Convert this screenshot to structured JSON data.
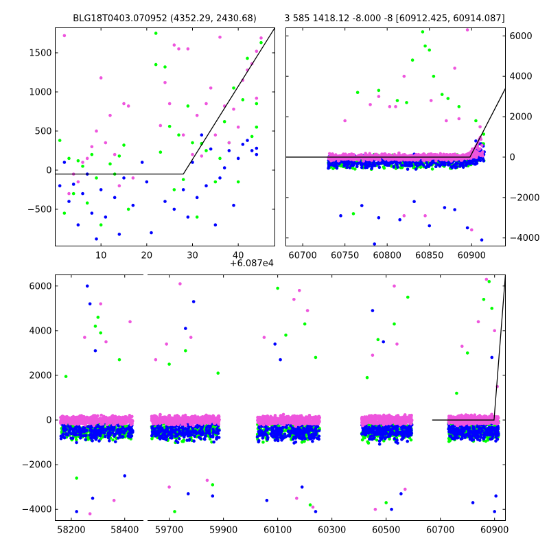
{
  "colors": {
    "series_green": "#00ff00",
    "series_blue": "#0000ff",
    "series_pink": "#ee55dd",
    "model_line": "#000000"
  },
  "chart_data": [
    {
      "id": "top-left",
      "type": "scatter",
      "title": "BLG18T0403.070952 (4352.29, 2430.68)",
      "offset_label": "+6.087e4",
      "xlim": [
        0,
        48
      ],
      "ylim": [
        -970,
        1820
      ],
      "xticks": [
        10,
        20,
        30,
        40
      ],
      "yticks": [
        -500,
        0,
        500,
        1000,
        1500
      ],
      "ytick_labels": [
        "−500",
        "0",
        "500",
        "1000",
        "1500"
      ],
      "yaxis_side": "left",
      "series": [
        {
          "name": "green",
          "color": "#00ff00",
          "points": [
            [
              1,
              380
            ],
            [
              2,
              -550
            ],
            [
              3,
              150
            ],
            [
              4,
              -300
            ],
            [
              5,
              120
            ],
            [
              6,
              50
            ],
            [
              7,
              -420
            ],
            [
              8,
              200
            ],
            [
              9,
              -100
            ],
            [
              10,
              -700
            ],
            [
              12,
              80
            ],
            [
              13,
              -50
            ],
            [
              14,
              180
            ],
            [
              15,
              320
            ],
            [
              16,
              -500
            ],
            [
              22,
              1750
            ],
            [
              22,
              1350
            ],
            [
              23,
              230
            ],
            [
              24,
              1320
            ],
            [
              25,
              560
            ],
            [
              26,
              -250
            ],
            [
              27,
              450
            ],
            [
              28,
              -120
            ],
            [
              29,
              820
            ],
            [
              30,
              350
            ],
            [
              31,
              -600
            ],
            [
              32,
              340
            ],
            [
              33,
              250
            ],
            [
              35,
              -150
            ],
            [
              36,
              150
            ],
            [
              37,
              620
            ],
            [
              38,
              350
            ],
            [
              39,
              1050
            ],
            [
              40,
              -150
            ],
            [
              41,
              900
            ],
            [
              42,
              1430
            ],
            [
              43,
              430
            ],
            [
              44,
              550
            ],
            [
              44,
              850
            ],
            [
              45,
              1630
            ]
          ]
        },
        {
          "name": "blue",
          "color": "#0000ff",
          "points": [
            [
              1,
              -200
            ],
            [
              2,
              100
            ],
            [
              3,
              -400
            ],
            [
              4,
              -180
            ],
            [
              5,
              -700
            ],
            [
              6,
              -300
            ],
            [
              7,
              -50
            ],
            [
              8,
              -550
            ],
            [
              9,
              -880
            ],
            [
              10,
              -250
            ],
            [
              11,
              -600
            ],
            [
              13,
              -350
            ],
            [
              14,
              -820
            ],
            [
              15,
              -100
            ],
            [
              17,
              -450
            ],
            [
              19,
              100
            ],
            [
              20,
              -150
            ],
            [
              21,
              -800
            ],
            [
              24,
              -400
            ],
            [
              26,
              -500
            ],
            [
              28,
              -250
            ],
            [
              29,
              -600
            ],
            [
              30,
              100
            ],
            [
              31,
              -350
            ],
            [
              32,
              450
            ],
            [
              33,
              -200
            ],
            [
              34,
              270
            ],
            [
              35,
              -700
            ],
            [
              36,
              -100
            ],
            [
              37,
              30
            ],
            [
              38,
              250
            ],
            [
              39,
              -450
            ],
            [
              40,
              150
            ],
            [
              41,
              330
            ],
            [
              42,
              380
            ],
            [
              43,
              250
            ],
            [
              44,
              200
            ],
            [
              44,
              280
            ]
          ]
        },
        {
          "name": "pink",
          "color": "#ee55dd",
          "points": [
            [
              2,
              1720
            ],
            [
              3,
              -300
            ],
            [
              4,
              -50
            ],
            [
              5,
              -150
            ],
            [
              6,
              100
            ],
            [
              7,
              150
            ],
            [
              8,
              300
            ],
            [
              9,
              500
            ],
            [
              10,
              1180
            ],
            [
              11,
              350
            ],
            [
              12,
              700
            ],
            [
              13,
              200
            ],
            [
              14,
              -200
            ],
            [
              15,
              850
            ],
            [
              16,
              820
            ],
            [
              17,
              -100
            ],
            [
              23,
              570
            ],
            [
              24,
              1120
            ],
            [
              25,
              850
            ],
            [
              26,
              1600
            ],
            [
              27,
              1550
            ],
            [
              28,
              450
            ],
            [
              29,
              1550
            ],
            [
              30,
              200
            ],
            [
              31,
              700
            ],
            [
              32,
              180
            ],
            [
              33,
              850
            ],
            [
              34,
              1050
            ],
            [
              35,
              450
            ],
            [
              36,
              1700
            ],
            [
              37,
              820
            ],
            [
              38,
              350
            ],
            [
              39,
              780
            ],
            [
              40,
              550
            ],
            [
              41,
              1150
            ],
            [
              42,
              1280
            ],
            [
              43,
              1360
            ],
            [
              44,
              920
            ],
            [
              44,
              1520
            ],
            [
              45,
              1690
            ]
          ]
        }
      ],
      "model_line": [
        [
          0,
          -50
        ],
        [
          28,
          -50
        ],
        [
          48,
          1820
        ]
      ]
    },
    {
      "id": "top-right",
      "type": "scatter",
      "title": "3 585 1418.12 -8.000 -8 [60912.425, 60914.087]",
      "xlim": [
        60680,
        60940
      ],
      "ylim": [
        -4400,
        6400
      ],
      "xticks": [
        60700,
        60750,
        60800,
        60850,
        60900
      ],
      "yticks": [
        -4000,
        -2000,
        0,
        2000,
        4000,
        6000
      ],
      "ytick_labels": [
        "−4000",
        "−2000",
        "0",
        "2000",
        "4000",
        "6000"
      ],
      "yaxis_side": "right",
      "x_range": [
        60730,
        60915
      ],
      "band": [
        -600,
        600
      ],
      "series": [
        {
          "name": "green",
          "color": "#00ff00",
          "outliers": [
            [
              60842,
              6200
            ],
            [
              60845,
              5500
            ],
            [
              60850,
              5300
            ],
            [
              60855,
              4000
            ],
            [
              60790,
              3300
            ],
            [
              60765,
              3200
            ],
            [
              60812,
              2800
            ],
            [
              60823,
              2700
            ],
            [
              60872,
              2900
            ],
            [
              60760,
              -2800
            ],
            [
              60885,
              2500
            ],
            [
              60905,
              1800
            ],
            [
              60830,
              4800
            ],
            [
              60865,
              3100
            ]
          ]
        },
        {
          "name": "blue",
          "color": "#0000ff",
          "outliers": [
            [
              60785,
              -4300
            ],
            [
              60815,
              -3100
            ],
            [
              60790,
              -3000
            ],
            [
              60850,
              -3400
            ],
            [
              60770,
              -2400
            ],
            [
              60868,
              -2500
            ],
            [
              60880,
              -2600
            ],
            [
              60895,
              -3500
            ],
            [
              60912,
              -4100
            ],
            [
              60905,
              800
            ],
            [
              60745,
              -2900
            ],
            [
              60832,
              -2200
            ]
          ]
        },
        {
          "name": "pink",
          "color": "#ee55dd",
          "outliers": [
            [
              60895,
              6300
            ],
            [
              60880,
              4400
            ],
            [
              60820,
              4000
            ],
            [
              60790,
              3000
            ],
            [
              60810,
              2500
            ],
            [
              60852,
              2800
            ],
            [
              60803,
              2500
            ],
            [
              60780,
              2600
            ],
            [
              60870,
              1800
            ],
            [
              60845,
              -2900
            ],
            [
              60900,
              -3600
            ],
            [
              60910,
              1500
            ],
            [
              60885,
              1900
            ],
            [
              60820,
              -2900
            ],
            [
              60750,
              1800
            ]
          ]
        }
      ],
      "model_line": [
        [
          60680,
          0
        ],
        [
          60898,
          0
        ],
        [
          60940,
          3400
        ]
      ]
    },
    {
      "id": "bottom",
      "type": "scatter",
      "xlim": [
        58140,
        58470,
        59620,
        60940
      ],
      "yticks": [
        -4000,
        -2000,
        0,
        2000,
        4000,
        6000
      ],
      "ytick_labels": [
        "−4000",
        "−2000",
        "0",
        "2000",
        "4000",
        "6000"
      ],
      "xticks_left": [
        58200,
        58400
      ],
      "xticks_right": [
        59700,
        59900,
        60100,
        60300,
        60500,
        60700,
        60900
      ],
      "ylim": [
        -4500,
        6500
      ],
      "yaxis_side": "left",
      "seasons": [
        [
          58160,
          58430
        ],
        [
          59635,
          59885
        ],
        [
          60025,
          60255
        ],
        [
          60410,
          60595
        ],
        [
          60730,
          60915
        ]
      ],
      "band": [
        -700,
        700
      ],
      "series": [
        {
          "name": "green",
          "color": "#00ff00",
          "outliers": [
            [
              58180,
              1950
            ],
            [
              58220,
              -2600
            ],
            [
              58290,
              4200
            ],
            [
              58300,
              4600
            ],
            [
              58310,
              3900
            ],
            [
              58380,
              2700
            ],
            [
              59700,
              2500
            ],
            [
              59720,
              -4100
            ],
            [
              59760,
              3100
            ],
            [
              59880,
              2100
            ],
            [
              59860,
              -2900
            ],
            [
              60100,
              5900
            ],
            [
              60130,
              3800
            ],
            [
              60200,
              4300
            ],
            [
              60220,
              -3800
            ],
            [
              60240,
              2800
            ],
            [
              60430,
              1900
            ],
            [
              60470,
              3600
            ],
            [
              60500,
              -3700
            ],
            [
              60530,
              4300
            ],
            [
              60580,
              5500
            ],
            [
              60760,
              1200
            ],
            [
              60800,
              3000
            ],
            [
              60860,
              5400
            ],
            [
              60880,
              6200
            ],
            [
              60890,
              5000
            ]
          ]
        },
        {
          "name": "blue",
          "color": "#0000ff",
          "outliers": [
            [
              58260,
              6000
            ],
            [
              58270,
              5200
            ],
            [
              58290,
              3100
            ],
            [
              58220,
              -4100
            ],
            [
              58280,
              -3500
            ],
            [
              58400,
              -2500
            ],
            [
              59760,
              4100
            ],
            [
              59790,
              5300
            ],
            [
              59770,
              -3300
            ],
            [
              59860,
              -3400
            ],
            [
              60060,
              -3600
            ],
            [
              60090,
              3400
            ],
            [
              60110,
              2700
            ],
            [
              60190,
              -3000
            ],
            [
              60240,
              -4100
            ],
            [
              60450,
              4900
            ],
            [
              60490,
              3500
            ],
            [
              60520,
              -4000
            ],
            [
              60555,
              -3300
            ],
            [
              60820,
              -3700
            ],
            [
              60900,
              -4100
            ],
            [
              60905,
              -3400
            ],
            [
              60890,
              2800
            ]
          ]
        },
        {
          "name": "pink",
          "color": "#ee55dd",
          "outliers": [
            [
              58250,
              3700
            ],
            [
              58310,
              5200
            ],
            [
              58330,
              3500
            ],
            [
              58420,
              4400
            ],
            [
              58270,
              -4200
            ],
            [
              58360,
              -3600
            ],
            [
              59650,
              2700
            ],
            [
              59690,
              3400
            ],
            [
              59740,
              6100
            ],
            [
              59780,
              3700
            ],
            [
              59700,
              -3000
            ],
            [
              59840,
              -2700
            ],
            [
              60050,
              3700
            ],
            [
              60160,
              5400
            ],
            [
              60180,
              5800
            ],
            [
              60210,
              4900
            ],
            [
              60170,
              -3500
            ],
            [
              60230,
              -3900
            ],
            [
              60450,
              2900
            ],
            [
              60460,
              -4000
            ],
            [
              60530,
              6000
            ],
            [
              60540,
              3400
            ],
            [
              60570,
              -3100
            ],
            [
              60780,
              3300
            ],
            [
              60840,
              4400
            ],
            [
              60870,
              6300
            ],
            [
              60900,
              4000
            ],
            [
              60910,
              1500
            ]
          ]
        }
      ],
      "model_line": [
        [
          60670,
          0
        ],
        [
          60898,
          0
        ],
        [
          60940,
          6500
        ]
      ]
    }
  ]
}
